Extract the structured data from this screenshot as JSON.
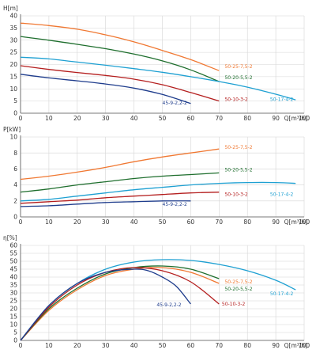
{
  "colors": {
    "orange": "#f07832",
    "green": "#1e6e2d",
    "cyan": "#1ea0d2",
    "red": "#b41e1e",
    "navy": "#1e3c8c"
  },
  "chart_data": [
    {
      "type": "line",
      "ylabel": "H[m]",
      "xlabel": "Q[m³/h]",
      "xlim": [
        0,
        100
      ],
      "ylim": [
        0,
        40
      ],
      "xticks": [
        "0",
        "10",
        "20",
        "30",
        "40",
        "50",
        "60",
        "70",
        "80",
        "90",
        "100"
      ],
      "yticks": [
        "0",
        "5",
        "10",
        "15",
        "20",
        "25",
        "30",
        "35",
        "40"
      ],
      "grid": true,
      "series": [
        {
          "name": "50-25-7,5-2",
          "color": "orange",
          "x": [
            0,
            10,
            20,
            30,
            40,
            50,
            60,
            70
          ],
          "y": [
            37,
            36,
            34.5,
            32.2,
            29.3,
            25.8,
            22,
            17.5
          ]
        },
        {
          "name": "50-20-5,5-2",
          "color": "green",
          "x": [
            0,
            10,
            20,
            30,
            40,
            50,
            60,
            70
          ],
          "y": [
            31.5,
            30,
            28.3,
            26.5,
            24.3,
            21.5,
            17.8,
            13
          ]
        },
        {
          "name": "50-17-4-2",
          "color": "cyan",
          "x": [
            0,
            10,
            20,
            30,
            40,
            50,
            60,
            70,
            80,
            90,
            97
          ],
          "y": [
            23,
            22.3,
            21,
            19.7,
            18.3,
            16.8,
            15,
            13,
            10.7,
            7.8,
            5.5
          ]
        },
        {
          "name": "50-10-3-2",
          "color": "red",
          "x": [
            0,
            10,
            20,
            30,
            40,
            50,
            60,
            70
          ],
          "y": [
            19.5,
            18,
            16.7,
            15.5,
            14,
            11.7,
            8.5,
            5
          ]
        },
        {
          "name": "45-9-2,2-2",
          "color": "navy",
          "x": [
            0,
            10,
            20,
            30,
            40,
            50,
            60
          ],
          "y": [
            16,
            14.5,
            13.3,
            12,
            10.3,
            7.7,
            4
          ]
        }
      ]
    },
    {
      "type": "line",
      "ylabel": "P[kW]",
      "xlabel": "Q[m³/h]",
      "xlim": [
        0,
        100
      ],
      "ylim": [
        0,
        10
      ],
      "xticks": [
        "0",
        "10",
        "20",
        "30",
        "40",
        "50",
        "60",
        "70",
        "80",
        "90",
        "100"
      ],
      "yticks": [
        "0",
        "2",
        "4",
        "6",
        "8",
        "10"
      ],
      "grid": true,
      "series": [
        {
          "name": "50-25-7,5-2",
          "color": "orange",
          "x": [
            0,
            10,
            20,
            30,
            40,
            50,
            60,
            70
          ],
          "y": [
            4.7,
            5.1,
            5.6,
            6.2,
            6.9,
            7.5,
            8,
            8.5
          ]
        },
        {
          "name": "50-20-5,5-2",
          "color": "green",
          "x": [
            0,
            10,
            20,
            30,
            40,
            50,
            60,
            70
          ],
          "y": [
            3.1,
            3.5,
            4,
            4.4,
            4.8,
            5.1,
            5.3,
            5.5
          ]
        },
        {
          "name": "50-17-4-2",
          "color": "cyan",
          "x": [
            0,
            10,
            20,
            30,
            40,
            50,
            60,
            70,
            80,
            90,
            97
          ],
          "y": [
            2,
            2.2,
            2.6,
            3,
            3.4,
            3.7,
            4,
            4.2,
            4.3,
            4.3,
            4.2
          ]
        },
        {
          "name": "50-10-3-2",
          "color": "red",
          "x": [
            0,
            10,
            20,
            30,
            40,
            50,
            60,
            70
          ],
          "y": [
            1.7,
            1.9,
            2.1,
            2.4,
            2.6,
            2.8,
            3,
            3.1
          ]
        },
        {
          "name": "45-9-2,2-2",
          "color": "navy",
          "x": [
            0,
            10,
            20,
            30,
            40,
            50,
            60
          ],
          "y": [
            1.3,
            1.4,
            1.6,
            1.8,
            1.9,
            2,
            2
          ]
        }
      ]
    },
    {
      "type": "line",
      "ylabel": "η[%]",
      "xlabel": "Q[m³/h]",
      "xlim": [
        0,
        100
      ],
      "ylim": [
        0,
        60
      ],
      "xticks": [
        "0",
        "10",
        "20",
        "30",
        "40",
        "50",
        "60",
        "70",
        "80",
        "90",
        "100"
      ],
      "yticks": [
        "0",
        "5",
        "10",
        "15",
        "20",
        "25",
        "30",
        "35",
        "40",
        "45",
        "50",
        "55",
        "60"
      ],
      "grid": true,
      "series": [
        {
          "name": "50-25-7,5-2",
          "color": "orange",
          "x": [
            0,
            10,
            20,
            30,
            40,
            50,
            60,
            70
          ],
          "y": [
            0,
            19,
            32,
            41,
            45,
            46,
            43,
            36
          ]
        },
        {
          "name": "50-20-5,5-2",
          "color": "green",
          "x": [
            0,
            10,
            20,
            30,
            40,
            50,
            60,
            70
          ],
          "y": [
            0,
            20,
            33,
            42,
            46,
            47,
            45,
            39
          ]
        },
        {
          "name": "50-17-4-2",
          "color": "cyan",
          "x": [
            0,
            10,
            20,
            30,
            40,
            50,
            60,
            70,
            80,
            90,
            97
          ],
          "y": [
            0,
            22,
            36,
            45,
            49.5,
            51,
            50.5,
            48,
            44,
            38,
            32
          ]
        },
        {
          "name": "50-10-3-2",
          "color": "red",
          "x": [
            0,
            10,
            20,
            30,
            40,
            50,
            60,
            70
          ],
          "y": [
            0,
            21,
            35,
            43,
            46,
            44,
            37,
            23
          ]
        },
        {
          "name": "45-9-2,2-2",
          "color": "navy",
          "x": [
            0,
            10,
            20,
            30,
            40,
            45,
            50,
            55,
            60
          ],
          "y": [
            0,
            22,
            36,
            43,
            45,
            44,
            40,
            34,
            23
          ]
        }
      ]
    }
  ]
}
